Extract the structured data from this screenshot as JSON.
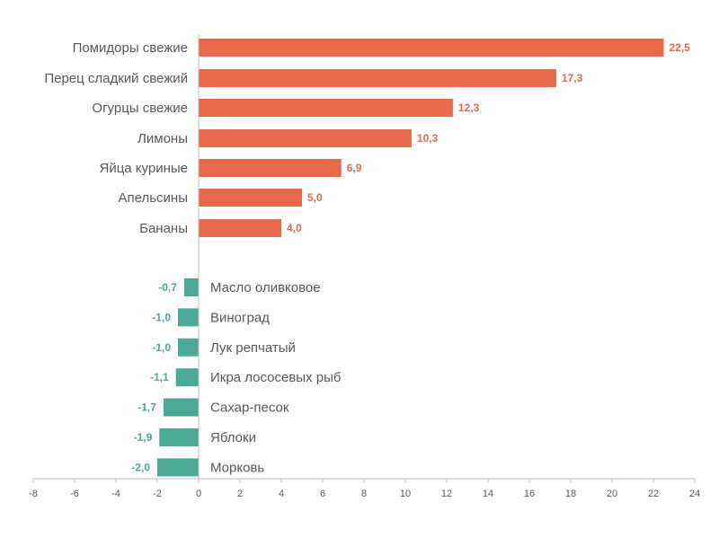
{
  "chart_data": {
    "type": "bar",
    "orientation": "horizontal",
    "categories": [
      "Помидоры свежие",
      "Перец сладкий свежий",
      "Огурцы свежие",
      "Лимоны",
      "Яйца куриные",
      "Апельсины",
      "Бананы",
      "Масло оливковое",
      "Виноград",
      "Лук репчатый",
      "Икра лососевых рыб",
      "Сахар-песок",
      "Яблоки",
      "Морковь"
    ],
    "values": [
      22.5,
      17.3,
      12.3,
      10.3,
      6.9,
      5.0,
      4.0,
      -0.7,
      -1.0,
      -1.0,
      -1.1,
      -1.7,
      -1.9,
      -2.0
    ],
    "value_labels": [
      "22,5",
      "17,3",
      "12,3",
      "10,3",
      "6,9",
      "5,0",
      "4,0",
      "-0,7",
      "-1,0",
      "-1,0",
      "-1,1",
      "-1,7",
      "-1,9",
      "-2,0"
    ],
    "xlim": [
      -8,
      24
    ],
    "x_ticks": [
      "-8",
      "-6",
      "-4",
      "-2",
      "0",
      "2",
      "4",
      "6",
      "8",
      "10",
      "12",
      "14",
      "16",
      "18",
      "20",
      "22",
      "24"
    ],
    "title": "",
    "xlabel": "",
    "ylabel": "",
    "grid": false,
    "colors": {
      "positive": "#E5694A",
      "negative": "#4AAA96",
      "axis": "#BFBFBF",
      "text": "#595959"
    }
  }
}
